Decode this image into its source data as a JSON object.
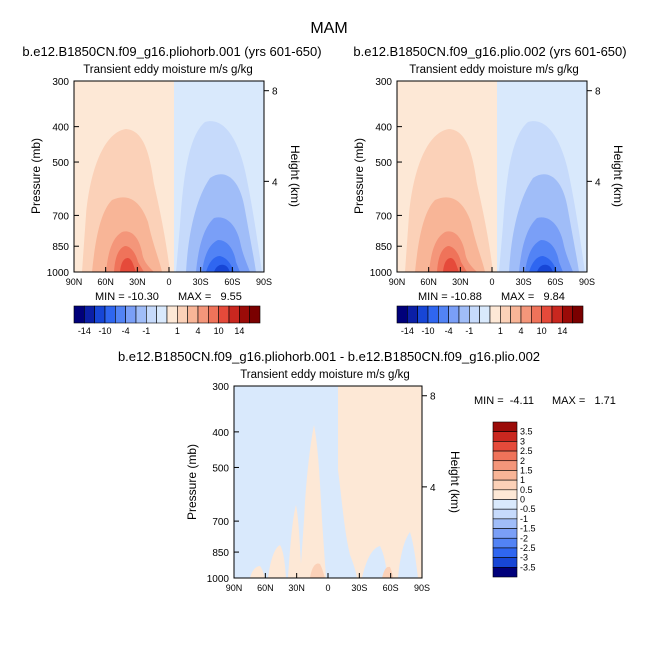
{
  "page": {
    "title": "MAM"
  },
  "chart_data": [
    {
      "type": "heatmap",
      "title": "b.e12.B1850CN.f09_g16.pliohorb.001 (yrs 601-650)",
      "subtitle": "Transient eddy moisture m/s g/kg",
      "ylabel": "Pressure (mb)",
      "y2label": "Height (km)",
      "x_ticks": [
        "90N",
        "60N",
        "30N",
        "0",
        "30S",
        "60S",
        "90S"
      ],
      "y_ticks": [
        "300",
        "400",
        "500",
        "700",
        "850",
        "1000"
      ],
      "y2_ticks": [
        "8",
        "4"
      ],
      "min_label": "MIN = -10.30",
      "max_label": "MAX =   9.55",
      "colorbar_labels": [
        "-14",
        "-10",
        "-4",
        "-1",
        "1",
        "4",
        "10",
        "14"
      ],
      "colors": [
        "#00007a",
        "#0b1fa6",
        "#1746d6",
        "#2f66f0",
        "#5283f5",
        "#7a9ff7",
        "#a0bdf8",
        "#c6dafb",
        "#d9e9fc",
        "#fde8d6",
        "#fbd1b8",
        "#f8b597",
        "#f4967a",
        "#ef735a",
        "#e54a3a",
        "#c9271f",
        "#9b0b08",
        "#7a0000"
      ]
    },
    {
      "type": "heatmap",
      "title": "b.e12.B1850CN.f09_g16.plio.002 (yrs 601-650)",
      "subtitle": "Transient eddy moisture m/s g/kg",
      "ylabel": "Pressure (mb)",
      "y2label": "Height (km)",
      "x_ticks": [
        "90N",
        "60N",
        "30N",
        "0",
        "30S",
        "60S",
        "90S"
      ],
      "y_ticks": [
        "300",
        "400",
        "500",
        "700",
        "850",
        "1000"
      ],
      "y2_ticks": [
        "8",
        "4"
      ],
      "min_label": "MIN = -10.88",
      "max_label": "MAX =   9.84",
      "colorbar_labels": [
        "-14",
        "-10",
        "-4",
        "-1",
        "1",
        "4",
        "10",
        "14"
      ]
    },
    {
      "type": "heatmap",
      "title": "b.e12.B1850CN.f09_g16.pliohorb.001 - b.e12.B1850CN.f09_g16.plio.002",
      "subtitle": "Transient eddy moisture m/s g/kg",
      "ylabel": "Pressure (mb)",
      "y2label": "Height (km)",
      "x_ticks": [
        "90N",
        "60N",
        "30N",
        "0",
        "30S",
        "60S",
        "90S"
      ],
      "y_ticks": [
        "300",
        "400",
        "500",
        "700",
        "850",
        "1000"
      ],
      "y2_ticks": [
        "8",
        "4"
      ],
      "min_label": "MIN =  -4.11",
      "max_label": "MAX =   1.71",
      "colorbar_labels": [
        "3.5",
        "3",
        "2.5",
        "2",
        "1.5",
        "1",
        "0.5",
        "0",
        "-0.5",
        "-1",
        "-1.5",
        "-2",
        "-2.5",
        "-3",
        "-3.5"
      ],
      "colors": [
        "#9b0b08",
        "#c9271f",
        "#e54a3a",
        "#ef735a",
        "#f4967a",
        "#f8b597",
        "#fbd1b8",
        "#fde8d6",
        "#d9e9fc",
        "#c6dafb",
        "#a0bdf8",
        "#7a9ff7",
        "#5283f5",
        "#2f66f0",
        "#1746d6",
        "#00007a"
      ]
    }
  ]
}
